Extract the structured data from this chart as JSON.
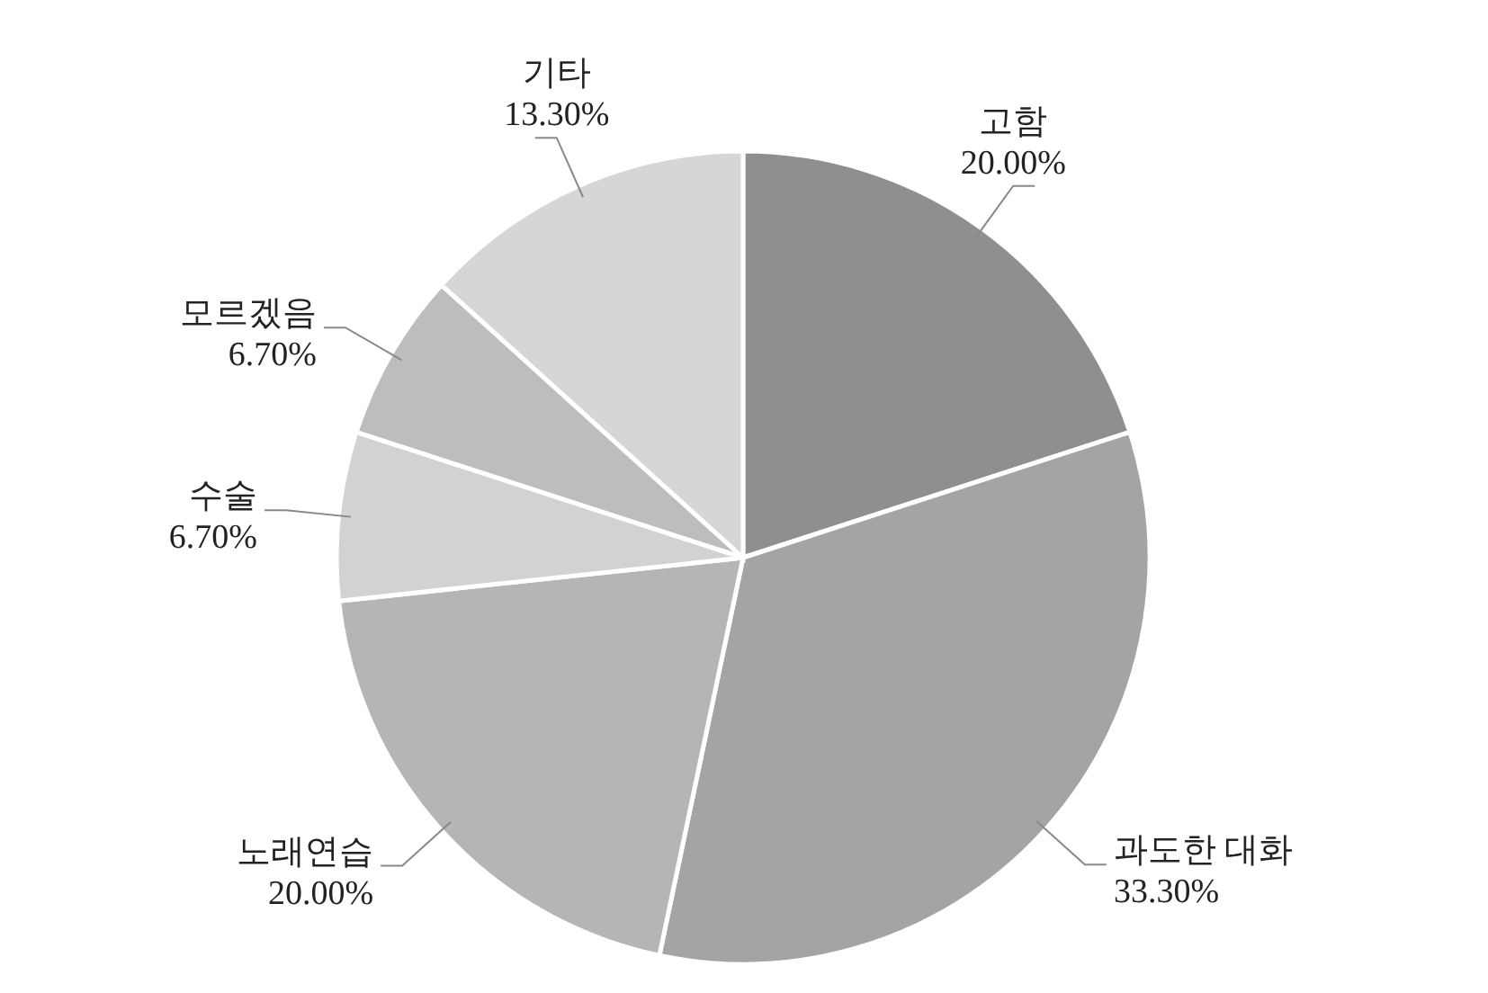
{
  "chart_data": {
    "type": "pie",
    "categories": [
      "고함",
      "과도한 대화",
      "노래연습",
      "수술",
      "모르겠음",
      "기타"
    ],
    "values": [
      20.0,
      33.3,
      20.0,
      6.7,
      6.7,
      13.3
    ],
    "value_labels": [
      "20.00%",
      "33.30%",
      "20.00%",
      "6.70%",
      "6.70%",
      "13.30%"
    ],
    "colors": [
      "#8f8f8f",
      "#a4a4a4",
      "#b5b5b5",
      "#d2d2d2",
      "#bdbdbd",
      "#d6d6d6"
    ]
  }
}
